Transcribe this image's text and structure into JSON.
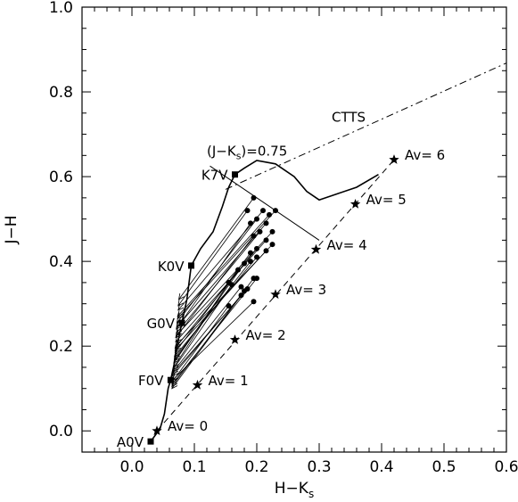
{
  "chart_data": {
    "type": "scatter",
    "title": "",
    "xlabel": "H−K",
    "xlabel_sub": "s",
    "ylabel": "J−H",
    "xlim": [
      -0.08,
      0.6
    ],
    "ylim": [
      -0.05,
      1.0
    ],
    "xticks": [
      0.0,
      0.1,
      0.2,
      0.3,
      0.4,
      0.5,
      0.6
    ],
    "xtick_labels": [
      "0.0",
      "0.1",
      "0.2",
      "0.3",
      "0.4",
      "0.5",
      "0.6"
    ],
    "yticks": [
      0.0,
      0.2,
      0.4,
      0.6,
      0.8,
      1.0
    ],
    "ytick_labels": [
      "0.0",
      "0.2",
      "0.4",
      "0.6",
      "0.8",
      "1.0"
    ],
    "series": [
      {
        "kind": "dwarf-locus",
        "points": [
          [
            0.03,
            -0.025
          ],
          [
            0.045,
            0.005
          ],
          [
            0.052,
            0.04
          ],
          [
            0.058,
            0.1
          ],
          [
            0.062,
            0.12
          ],
          [
            0.068,
            0.16
          ],
          [
            0.075,
            0.22
          ],
          [
            0.08,
            0.255
          ],
          [
            0.088,
            0.31
          ],
          [
            0.095,
            0.39
          ],
          [
            0.11,
            0.43
          ],
          [
            0.13,
            0.47
          ],
          [
            0.145,
            0.53
          ],
          [
            0.155,
            0.575
          ],
          [
            0.165,
            0.605
          ],
          [
            0.18,
            0.62
          ],
          [
            0.2,
            0.638
          ],
          [
            0.23,
            0.63
          ],
          [
            0.26,
            0.6
          ],
          [
            0.28,
            0.565
          ],
          [
            0.3,
            0.545
          ],
          [
            0.33,
            0.56
          ],
          [
            0.36,
            0.575
          ],
          [
            0.395,
            0.605
          ]
        ]
      },
      {
        "kind": "reddening-line",
        "points": [
          [
            0.04,
            0.0
          ],
          [
            0.42,
            0.64
          ]
        ]
      },
      {
        "kind": "ctts-locus",
        "points": [
          [
            0.15,
            0.57
          ],
          [
            0.6,
            0.868
          ]
        ]
      },
      {
        "kind": "j-ks-line",
        "points": [
          [
            0.125,
            0.625
          ],
          [
            0.3,
            0.45
          ]
        ]
      },
      {
        "kind": "spectral-types",
        "points": [
          {
            "x": 0.03,
            "y": -0.025,
            "label": "A0V"
          },
          {
            "x": 0.062,
            "y": 0.12,
            "label": "F0V"
          },
          {
            "x": 0.08,
            "y": 0.255,
            "label": "G0V"
          },
          {
            "x": 0.095,
            "y": 0.39,
            "label": "K0V"
          },
          {
            "x": 0.165,
            "y": 0.605,
            "label": "K7V"
          }
        ]
      },
      {
        "kind": "extinction-stars",
        "points": [
          {
            "x": 0.04,
            "y": 0.0,
            "label": "Av=   0"
          },
          {
            "x": 0.105,
            "y": 0.108,
            "label": "Av=   1"
          },
          {
            "x": 0.165,
            "y": 0.215,
            "label": "Av=   2"
          },
          {
            "x": 0.23,
            "y": 0.322,
            "label": "Av=   3"
          },
          {
            "x": 0.295,
            "y": 0.428,
            "label": "Av=   4"
          },
          {
            "x": 0.358,
            "y": 0.535,
            "label": "Av=   5"
          },
          {
            "x": 0.42,
            "y": 0.64,
            "label": "Av=   6"
          }
        ]
      },
      {
        "kind": "dereddening-vectors",
        "points": [
          [
            0.195,
            0.55,
            0.075,
            0.31
          ],
          [
            0.185,
            0.52,
            0.074,
            0.295
          ],
          [
            0.21,
            0.52,
            0.074,
            0.285
          ],
          [
            0.22,
            0.51,
            0.073,
            0.27
          ],
          [
            0.23,
            0.52,
            0.073,
            0.265
          ],
          [
            0.2,
            0.5,
            0.072,
            0.255
          ],
          [
            0.215,
            0.49,
            0.072,
            0.245
          ],
          [
            0.19,
            0.49,
            0.071,
            0.24
          ],
          [
            0.205,
            0.47,
            0.071,
            0.23
          ],
          [
            0.225,
            0.47,
            0.071,
            0.225
          ],
          [
            0.195,
            0.46,
            0.07,
            0.22
          ],
          [
            0.215,
            0.45,
            0.07,
            0.21
          ],
          [
            0.225,
            0.44,
            0.07,
            0.2
          ],
          [
            0.2,
            0.43,
            0.069,
            0.195
          ],
          [
            0.215,
            0.425,
            0.069,
            0.19
          ],
          [
            0.19,
            0.42,
            0.069,
            0.185
          ],
          [
            0.2,
            0.41,
            0.068,
            0.175
          ],
          [
            0.19,
            0.4,
            0.068,
            0.17
          ],
          [
            0.18,
            0.395,
            0.068,
            0.165
          ],
          [
            0.17,
            0.38,
            0.067,
            0.16
          ],
          [
            0.155,
            0.35,
            0.067,
            0.15
          ],
          [
            0.16,
            0.345,
            0.066,
            0.145
          ],
          [
            0.175,
            0.34,
            0.066,
            0.14
          ],
          [
            0.185,
            0.335,
            0.065,
            0.135
          ],
          [
            0.175,
            0.32,
            0.065,
            0.13
          ],
          [
            0.195,
            0.305,
            0.065,
            0.12
          ],
          [
            0.155,
            0.295,
            0.064,
            0.115
          ],
          [
            0.2,
            0.36,
            0.064,
            0.11
          ],
          [
            0.195,
            0.36,
            0.064,
            0.105
          ],
          [
            0.18,
            0.33,
            0.064,
            0.1
          ]
        ]
      }
    ],
    "annotations": [
      {
        "text_main": "(J−K",
        "text_sub": "s",
        "text_tail": ")=0.75",
        "x": 0.12,
        "y": 0.65
      },
      {
        "text_main": "CTTS",
        "x": 0.32,
        "y": 0.73
      }
    ],
    "grid": false,
    "legend": "none"
  }
}
